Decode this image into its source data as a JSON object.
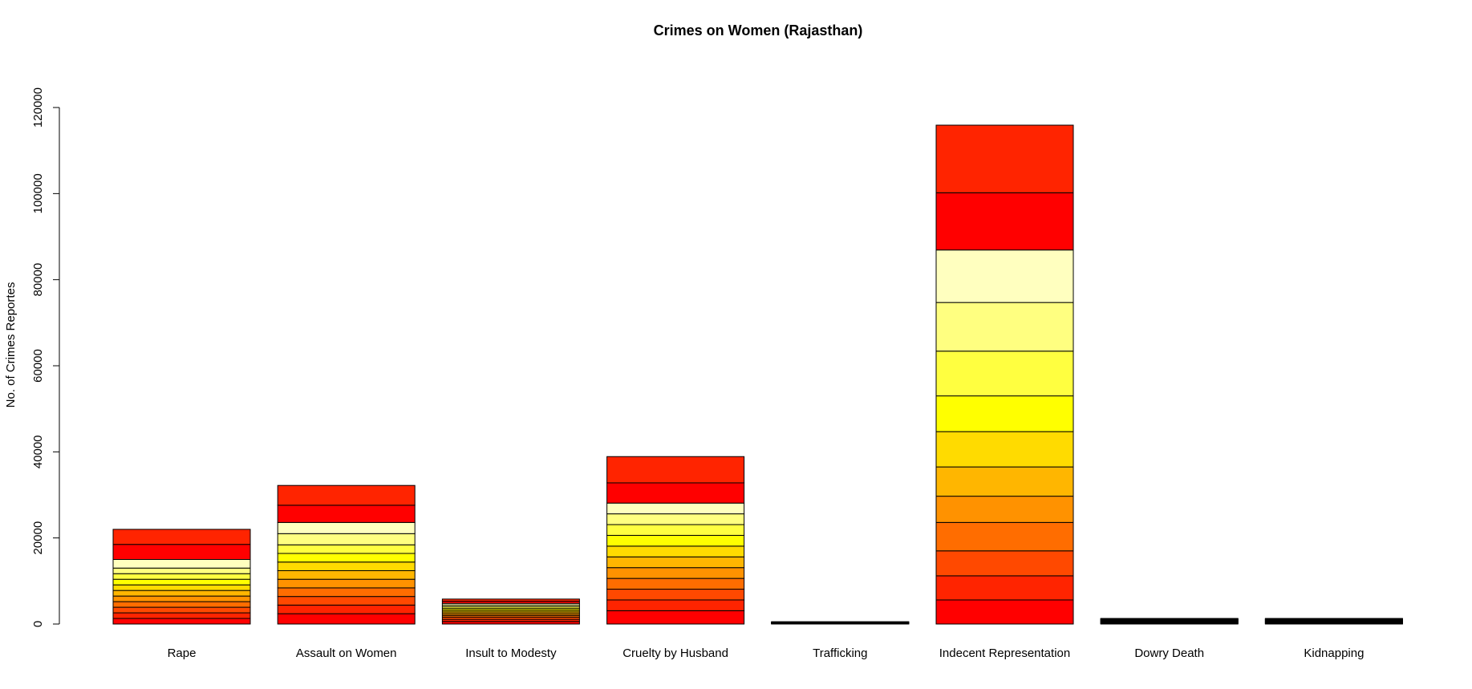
{
  "chart_data": {
    "type": "bar",
    "stacked": true,
    "title": "Crimes on Women (Rajasthan)",
    "xlabel": "",
    "ylabel": "No. of Crimes Reportes",
    "ylim": [
      0,
      131000
    ],
    "yticks": [
      0,
      20000,
      40000,
      60000,
      80000,
      100000,
      120000
    ],
    "ytick_labels": [
      "0",
      "20000",
      "40000",
      "60000",
      "80000",
      "100000",
      "120000"
    ],
    "grid": false,
    "legend": "none",
    "categories": [
      "Rape",
      "Assault on Women",
      "Insult to Modesty",
      "Cruelty by Husband",
      "Trafficking",
      "Indecent Representation",
      "Dowry Death",
      "Kidnapping"
    ],
    "series_colors": [
      "#FF0000",
      "#FF2400",
      "#FF4900",
      "#FF6D00",
      "#FF9200",
      "#FFB600",
      "#FFDB00",
      "#FFFF00",
      "#FFFF40",
      "#FFFF80",
      "#FFFFBF",
      "#FF0000",
      "#FF2400"
    ],
    "stacks": [
      [
        1300,
        1300,
        1300,
        1300,
        1300,
        1300,
        1300,
        1300,
        1300,
        1300,
        2000,
        3500,
        3500
      ],
      [
        2400,
        2000,
        2000,
        2000,
        2000,
        2000,
        2000,
        2000,
        2000,
        2600,
        2600,
        4000,
        4600
      ],
      [
        600,
        500,
        500,
        400,
        400,
        400,
        400,
        400,
        400,
        400,
        400,
        500,
        500
      ],
      [
        3100,
        2500,
        2500,
        2500,
        2500,
        2500,
        2500,
        2500,
        2500,
        2500,
        2500,
        4700,
        6100
      ],
      [
        40,
        40,
        40,
        40,
        40,
        40,
        40,
        40,
        40,
        40,
        40,
        50,
        50
      ],
      [
        5600,
        5600,
        5800,
        6600,
        6100,
        6800,
        8200,
        8300,
        10400,
        11300,
        12200,
        13300,
        15700
      ],
      [
        100,
        100,
        100,
        100,
        100,
        100,
        100,
        100,
        100,
        100,
        100,
        100,
        100
      ],
      [
        100,
        100,
        100,
        100,
        100,
        100,
        100,
        100,
        100,
        100,
        100,
        100,
        100
      ]
    ]
  }
}
